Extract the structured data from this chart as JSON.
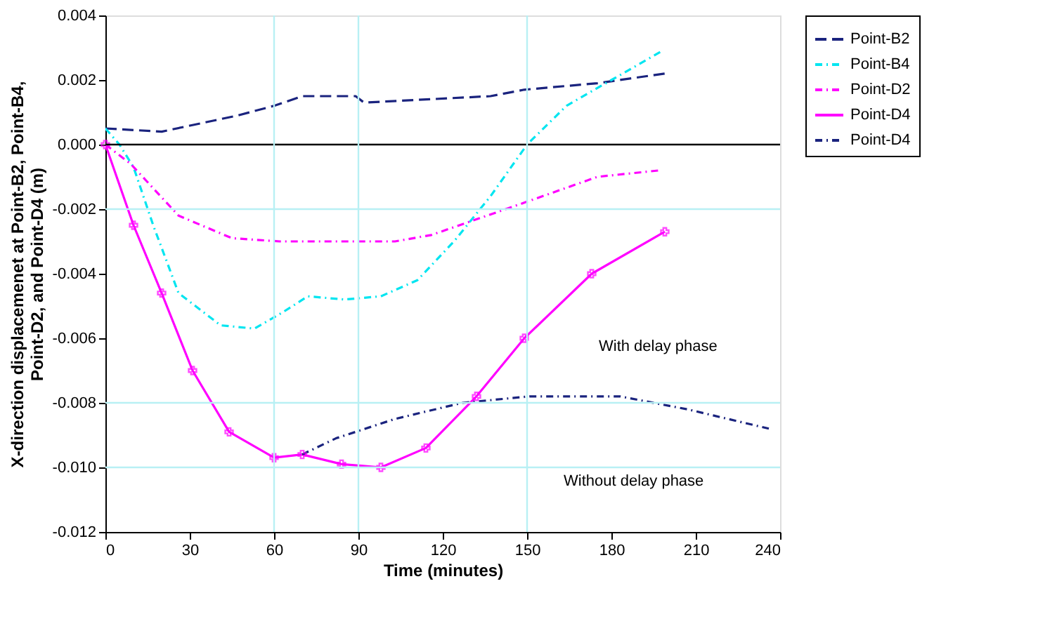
{
  "chart_data": {
    "type": "line",
    "xlabel": "Time (minutes)",
    "ylabel": "X-direction displacemenet at Point-B2, Point-B4, Point-D2, and Point-D4 (m)",
    "xlim": [
      0,
      240
    ],
    "xticks": [
      0,
      30,
      60,
      90,
      120,
      150,
      180,
      210,
      240
    ],
    "ylim": [
      -0.012,
      0.004
    ],
    "yticks": [
      {
        "value": -0.012,
        "label": "-0.012"
      },
      {
        "value": -0.01,
        "label": "-0.010"
      },
      {
        "value": -0.008,
        "label": "-0.008"
      },
      {
        "value": -0.006,
        "label": "-0.006"
      },
      {
        "value": -0.004,
        "label": "-0.004"
      },
      {
        "value": -0.002,
        "label": "-0.002"
      },
      {
        "value": 0,
        "label": "0.000"
      },
      {
        "value": 0.002,
        "label": "0.002"
      },
      {
        "value": 0.004,
        "label": "0.004"
      }
    ],
    "grid": false,
    "legend": "right",
    "ref_lines": [
      {
        "axis": "y",
        "value": 0,
        "color": "#000000"
      },
      {
        "axis": "x",
        "value": 60,
        "color": "#b8f0f4"
      },
      {
        "axis": "x",
        "value": 90,
        "color": "#b8f0f4"
      },
      {
        "axis": "x",
        "value": 150,
        "color": "#b8f0f4"
      },
      {
        "axis": "y",
        "value": -0.002,
        "color": "#b8f0f4"
      },
      {
        "axis": "y",
        "value": -0.008,
        "color": "#b8f0f4"
      },
      {
        "axis": "y",
        "value": -0.01,
        "color": "#b8f0f4"
      }
    ],
    "annotations": [
      "With delay phase",
      "Without delay phase"
    ],
    "series": [
      {
        "name": "Point-B2",
        "color": "#1a237e",
        "line_style": "dashed",
        "marker": "none",
        "x": [
          0,
          20,
          47,
          60,
          70,
          89,
          92,
          137,
          149,
          175,
          199
        ],
        "values": [
          0.0005,
          0.0004,
          0.0009,
          0.0012,
          0.0015,
          0.0015,
          0.0013,
          0.0015,
          0.0017,
          0.0019,
          0.0022
        ]
      },
      {
        "name": "Point-B4",
        "color": "#00e5f0",
        "line_style": "dotted",
        "marker": "none",
        "x": [
          0,
          5,
          10,
          17,
          26,
          41,
          53,
          63,
          72,
          85,
          98,
          111,
          124,
          137,
          150,
          164,
          180,
          198
        ],
        "values": [
          0.0005,
          0.0,
          -0.0007,
          -0.0025,
          -0.0046,
          -0.0056,
          -0.0057,
          -0.0052,
          -0.0047,
          -0.0048,
          -0.0047,
          -0.0042,
          -0.003,
          -0.0016,
          0.0,
          0.0012,
          0.002,
          0.0029
        ]
      },
      {
        "name": "Point-D2",
        "color": "#ff00ff",
        "line_style": "dotted",
        "marker": "none",
        "x": [
          0,
          9,
          26,
          45,
          62,
          103,
          116,
          149,
          175,
          197
        ],
        "values": [
          0.0,
          -0.0006,
          -0.0022,
          -0.0029,
          -0.003,
          -0.003,
          -0.0028,
          -0.0018,
          -0.001,
          -0.0008
        ]
      },
      {
        "name": "Point-D4",
        "color": "#ff00ff",
        "line_style": "solid",
        "marker": "cross",
        "x": [
          0,
          10,
          20,
          31,
          44,
          60,
          70,
          84,
          98,
          114,
          132,
          149,
          173,
          199
        ],
        "values": [
          0.0,
          -0.0025,
          -0.0046,
          -0.007,
          -0.0089,
          -0.0097,
          -0.0096,
          -0.0099,
          -0.01,
          -0.0094,
          -0.0078,
          -0.006,
          -0.004,
          -0.0027
        ]
      },
      {
        "name": "Point-D4",
        "color": "#1a237e",
        "line_style": "dotted",
        "marker": "none",
        "x": [
          70,
          82,
          103,
          127,
          151,
          183,
          207,
          236
        ],
        "values": [
          -0.0096,
          -0.0091,
          -0.0085,
          -0.008,
          -0.0078,
          -0.0078,
          -0.0082,
          -0.0088
        ]
      }
    ]
  }
}
